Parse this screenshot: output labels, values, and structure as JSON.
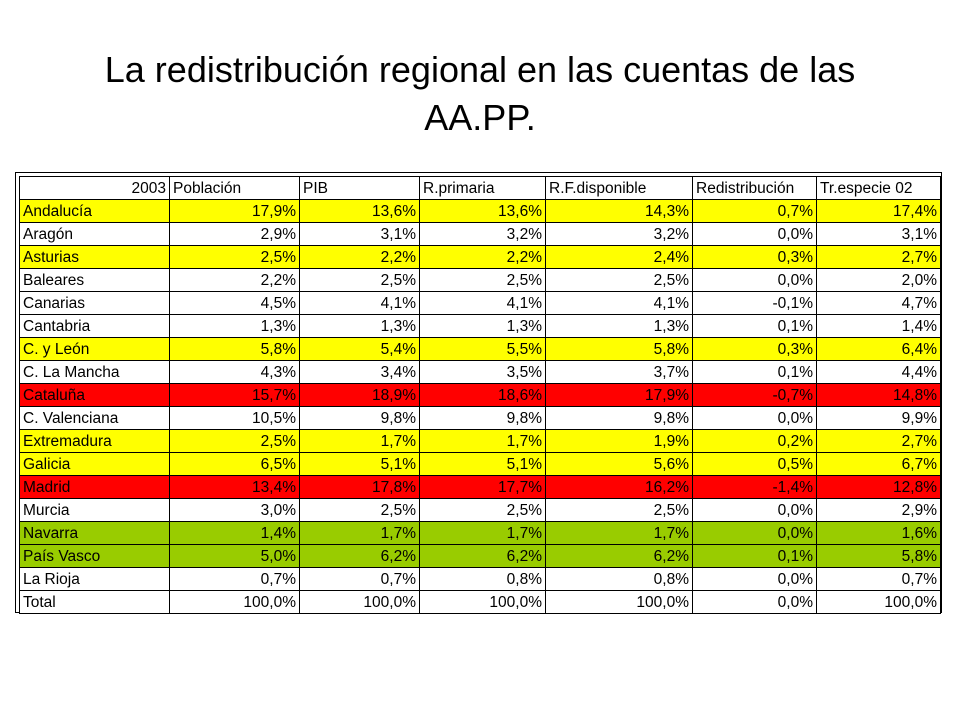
{
  "title": "La redistribución regional en las cuentas de las AA.PP.",
  "colors": {
    "yellow": "#ffff00",
    "red": "#ff0000",
    "green": "#99cc00",
    "white": "#ffffff"
  },
  "table": {
    "headers": [
      "2003",
      "Población",
      "PIB",
      "R.primaria",
      "R.F.disponible",
      "Redistribución",
      "Tr.especie 02"
    ],
    "rows": [
      {
        "region": "Andalucía",
        "color": "yellow",
        "values": [
          "17,9%",
          "13,6%",
          "13,6%",
          "14,3%",
          "0,7%",
          "17,4%"
        ]
      },
      {
        "region": "Aragón",
        "color": "white",
        "values": [
          "2,9%",
          "3,1%",
          "3,2%",
          "3,2%",
          "0,0%",
          "3,1%"
        ]
      },
      {
        "region": "Asturias",
        "color": "yellow",
        "values": [
          "2,5%",
          "2,2%",
          "2,2%",
          "2,4%",
          "0,3%",
          "2,7%"
        ]
      },
      {
        "region": "Baleares",
        "color": "white",
        "values": [
          "2,2%",
          "2,5%",
          "2,5%",
          "2,5%",
          "0,0%",
          "2,0%"
        ]
      },
      {
        "region": "Canarias",
        "color": "white",
        "values": [
          "4,5%",
          "4,1%",
          "4,1%",
          "4,1%",
          "-0,1%",
          "4,7%"
        ]
      },
      {
        "region": "Cantabria",
        "color": "white",
        "values": [
          "1,3%",
          "1,3%",
          "1,3%",
          "1,3%",
          "0,1%",
          "1,4%"
        ]
      },
      {
        "region": "C. y León",
        "color": "yellow",
        "values": [
          "5,8%",
          "5,4%",
          "5,5%",
          "5,8%",
          "0,3%",
          "6,4%"
        ]
      },
      {
        "region": "C. La Mancha",
        "color": "white",
        "values": [
          "4,3%",
          "3,4%",
          "3,5%",
          "3,7%",
          "0,1%",
          "4,4%"
        ]
      },
      {
        "region": "Cataluña",
        "color": "red",
        "values": [
          "15,7%",
          "18,9%",
          "18,6%",
          "17,9%",
          "-0,7%",
          "14,8%"
        ]
      },
      {
        "region": "C. Valenciana",
        "color": "white",
        "values": [
          "10,5%",
          "9,8%",
          "9,8%",
          "9,8%",
          "0,0%",
          "9,9%"
        ]
      },
      {
        "region": "Extremadura",
        "color": "yellow",
        "values": [
          "2,5%",
          "1,7%",
          "1,7%",
          "1,9%",
          "0,2%",
          "2,7%"
        ]
      },
      {
        "region": "Galicia",
        "color": "yellow",
        "values": [
          "6,5%",
          "5,1%",
          "5,1%",
          "5,6%",
          "0,5%",
          "6,7%"
        ]
      },
      {
        "region": "Madrid",
        "color": "red",
        "values": [
          "13,4%",
          "17,8%",
          "17,7%",
          "16,2%",
          "-1,4%",
          "12,8%"
        ]
      },
      {
        "region": "Murcia",
        "color": "white",
        "values": [
          "3,0%",
          "2,5%",
          "2,5%",
          "2,5%",
          "0,0%",
          "2,9%"
        ]
      },
      {
        "region": "Navarra",
        "color": "green",
        "values": [
          "1,4%",
          "1,7%",
          "1,7%",
          "1,7%",
          "0,0%",
          "1,6%"
        ]
      },
      {
        "region": "País Vasco",
        "color": "green",
        "values": [
          "5,0%",
          "6,2%",
          "6,2%",
          "6,2%",
          "0,1%",
          "5,8%"
        ]
      },
      {
        "region": "La Rioja",
        "color": "white",
        "values": [
          "0,7%",
          "0,7%",
          "0,8%",
          "0,8%",
          "0,0%",
          "0,7%"
        ]
      },
      {
        "region": "Total",
        "color": "white",
        "values": [
          "100,0%",
          "100,0%",
          "100,0%",
          "100,0%",
          "0,0%",
          "100,0%"
        ]
      }
    ]
  }
}
